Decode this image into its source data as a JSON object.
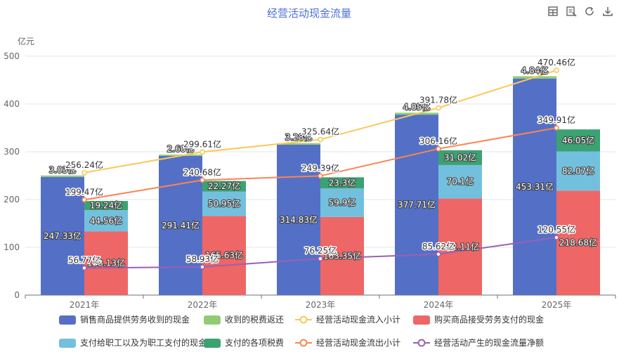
{
  "toolbar": {
    "icons": [
      "data-view-icon",
      "restore-edit-icon",
      "refresh-icon",
      "download-icon"
    ]
  },
  "colors": {
    "sales_receipts": "#5470c6",
    "tax_refunds": "#91cc75",
    "inflow_subtotal": "#fac858",
    "purchase_payments": "#ee6666",
    "employee_payments": "#73c0de",
    "tax_payments": "#3ba272",
    "outflow_subtotal": "#fc8452",
    "net_cash_flow": "#9a60b4"
  },
  "chart_data": {
    "type": "bar",
    "title": "经营活动现金流量",
    "unit": "亿元",
    "categories": [
      "2021年",
      "2022年",
      "2023年",
      "2024年",
      "2025年"
    ],
    "ylim": [
      0,
      500
    ],
    "yticks": [
      "0",
      "100",
      "200",
      "300",
      "400",
      "500"
    ],
    "grid": true,
    "legend_position": "bottom",
    "series": [
      {
        "name": "销售商品提供劳务收到的现金",
        "kind": "bar",
        "stack": "inflow",
        "values": [
          247.33,
          291.41,
          314.83,
          377.71,
          453.31
        ],
        "labels": [
          "247.33亿",
          "291.41亿",
          "314.83亿",
          "377.71亿",
          "453.31亿"
        ]
      },
      {
        "name": "收到的税费返还",
        "kind": "bar",
        "stack": "inflow",
        "values": [
          3.03,
          2.6,
          3.28,
          4.05,
          4.84
        ],
        "labels": [
          "3.03亿",
          "2.60亿",
          "3.28亿",
          "4.05亿",
          "4.84亿"
        ]
      },
      {
        "name": "经营活动现金流入小计",
        "kind": "line",
        "values": [
          256.24,
          299.61,
          325.64,
          391.78,
          470.46
        ],
        "labels": [
          "256.24亿",
          "299.61亿",
          "325.64亿",
          "391.78亿",
          "470.46亿"
        ]
      },
      {
        "name": "购买商品接受劳务支付的现金",
        "kind": "bar",
        "stack": "outflow",
        "values": [
          133.13,
          165.63,
          163.35,
          202.11,
          218.68
        ],
        "labels": [
          "133.13亿",
          "165.63亿",
          "163.35亿",
          "202.11亿",
          "218.68亿"
        ]
      },
      {
        "name": "支付给职工以及为职工支付的现金",
        "kind": "bar",
        "stack": "outflow",
        "values": [
          44.56,
          50.95,
          59.9,
          70.1,
          82.07
        ],
        "labels": [
          "44.56亿",
          "50.95亿",
          "59.9亿",
          "70.1亿",
          "82.07亿"
        ]
      },
      {
        "name": "支付的各项税费",
        "kind": "bar",
        "stack": "outflow",
        "values": [
          19.24,
          22.27,
          23.3,
          31.02,
          46.05
        ],
        "labels": [
          "19.24亿",
          "22.27亿",
          "23.3亿",
          "31.02亿",
          "46.05亿"
        ]
      },
      {
        "name": "经营活动现金流出小计",
        "kind": "line",
        "values": [
          199.47,
          240.68,
          249.39,
          306.16,
          349.91
        ],
        "labels": [
          "199.47亿",
          "240.68亿",
          "249.39亿",
          "306.16亿",
          "349.91亿"
        ]
      },
      {
        "name": "经营活动产生的现金流量净额",
        "kind": "line",
        "values": [
          56.77,
          58.93,
          76.25,
          85.62,
          120.55
        ],
        "labels": [
          "56.77亿",
          "58.93亿",
          "76.25亿",
          "85.62亿",
          "120.55亿"
        ]
      }
    ]
  }
}
